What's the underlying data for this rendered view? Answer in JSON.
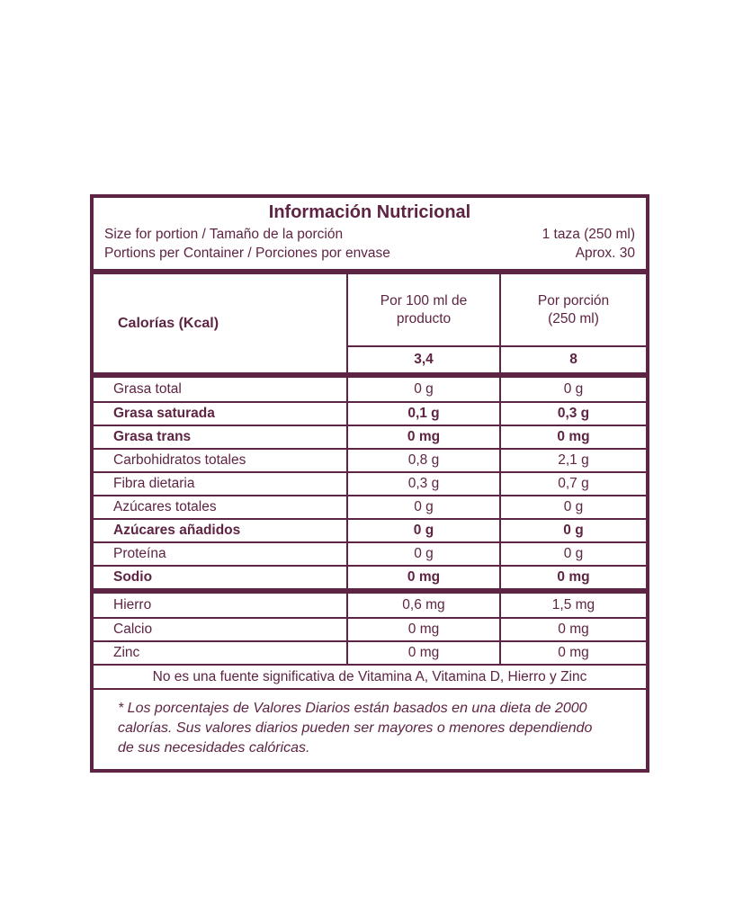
{
  "colors": {
    "accent": "#5e2443",
    "background": "#ffffff"
  },
  "header": {
    "title": "Información Nutricional",
    "rows": [
      {
        "label": "Size for portion / Tamaño de la porción",
        "value": "1 taza (250 ml)"
      },
      {
        "label": "Portions per Container / Porciones por envase",
        "value": "Aprox. 30"
      }
    ]
  },
  "calories": {
    "row_label": "Calorías (Kcal)",
    "columns": [
      "Por 100 ml de\nproducto",
      "Por porción\n(250 ml)"
    ],
    "values": [
      "3,4",
      "8"
    ]
  },
  "nutrients": [
    {
      "label": "Grasa total",
      "per_100ml": "0 g",
      "per_portion": "0 g",
      "bold": false
    },
    {
      "label": "Grasa saturada",
      "per_100ml": "0,1 g",
      "per_portion": "0,3 g",
      "bold": true
    },
    {
      "label": "Grasa trans",
      "per_100ml": "0 mg",
      "per_portion": "0 mg",
      "bold": true
    },
    {
      "label": "Carbohidratos totales",
      "per_100ml": "0,8 g",
      "per_portion": "2,1 g",
      "bold": false
    },
    {
      "label": "Fibra dietaria",
      "per_100ml": "0,3 g",
      "per_portion": "0,7 g",
      "bold": false
    },
    {
      "label": "Azúcares totales",
      "per_100ml": "0 g",
      "per_portion": "0 g",
      "bold": false
    },
    {
      "label": "Azúcares añadidos",
      "per_100ml": "0 g",
      "per_portion": "0 g",
      "bold": true
    },
    {
      "label": "Proteína",
      "per_100ml": "0 g",
      "per_portion": "0 g",
      "bold": false
    },
    {
      "label": "Sodio",
      "per_100ml": "0 mg",
      "per_portion": "0 mg",
      "bold": true
    }
  ],
  "minerals": [
    {
      "label": "Hierro",
      "per_100ml": "0,6 mg",
      "per_portion": "1,5 mg",
      "bold": false
    },
    {
      "label": "Calcio",
      "per_100ml": "0 mg",
      "per_portion": "0 mg",
      "bold": false
    },
    {
      "label": "Zinc",
      "per_100ml": "0 mg",
      "per_portion": "0 mg",
      "bold": false
    }
  ],
  "note": "No es una fuente significativa de Vitamina A, Vitamina D, Hierro y Zinc",
  "footnote": "* Los porcentajes de Valores Diarios están basados en una dieta de 2000\ncalorías. Sus valores diarios pueden ser mayores o menores dependiendo\nde sus necesidades calóricas."
}
